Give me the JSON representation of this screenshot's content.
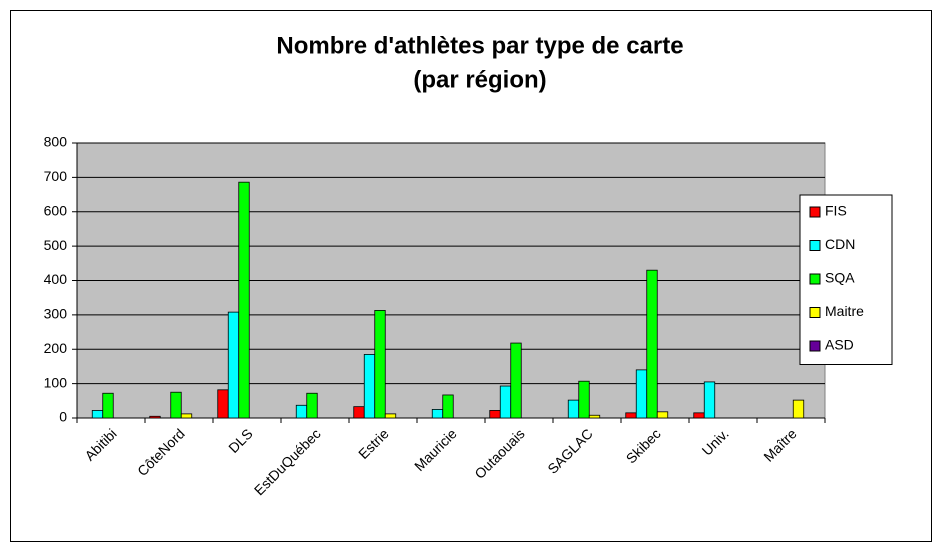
{
  "chart_data": {
    "type": "bar",
    "title": [
      "Nombre d'athlètes par type de carte",
      "(par région)"
    ],
    "categories": [
      "Abitibi",
      "CôteNord",
      "DLS",
      "EstDuQuébec",
      "Estrie",
      "Mauricie",
      "Outaouais",
      "SAGLAC",
      "Skibec",
      "Univ.",
      "Maître"
    ],
    "series": [
      {
        "name": "FIS",
        "color": "#ff0000",
        "values": [
          0,
          5,
          82,
          0,
          33,
          0,
          22,
          0,
          15,
          15,
          0
        ]
      },
      {
        "name": "CDN",
        "color": "#00ffff",
        "values": [
          22,
          0,
          308,
          37,
          185,
          25,
          93,
          52,
          140,
          105,
          0
        ]
      },
      {
        "name": "SQA",
        "color": "#00ff00",
        "values": [
          72,
          75,
          686,
          72,
          313,
          67,
          218,
          107,
          430,
          0,
          0
        ]
      },
      {
        "name": "Maitre",
        "color": "#ffff00",
        "values": [
          0,
          12,
          0,
          0,
          12,
          0,
          0,
          8,
          18,
          0,
          52
        ]
      },
      {
        "name": "ASD",
        "color": "#660099",
        "values": [
          0,
          0,
          0,
          0,
          0,
          0,
          0,
          0,
          0,
          0,
          0
        ]
      }
    ],
    "ylim": [
      0,
      800
    ],
    "yticks": [
      0,
      100,
      200,
      300,
      400,
      500,
      600,
      700,
      800
    ],
    "grid": true,
    "legend": "right"
  }
}
